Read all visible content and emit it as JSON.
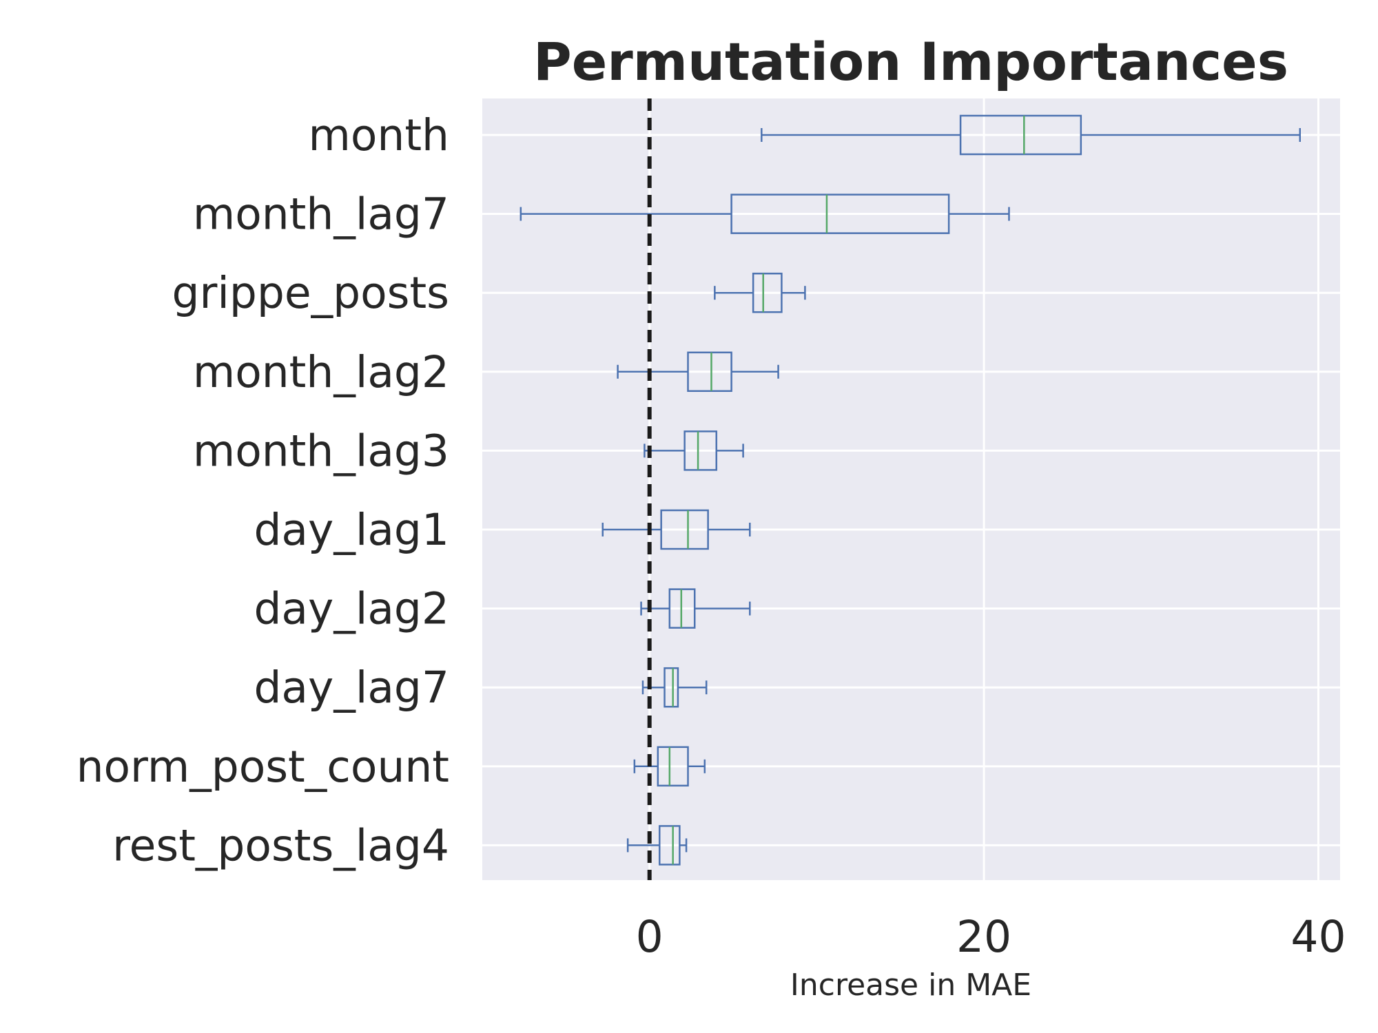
{
  "chart_data": {
    "type": "box",
    "orientation": "horizontal",
    "title": "Permutation Importances",
    "xlabel": "Increase in MAE",
    "ylabel": "",
    "xlim": [
      -10,
      41.3
    ],
    "xticks": [
      0,
      20,
      40
    ],
    "grid": true,
    "reference_line": {
      "x": 0,
      "style": "dashed",
      "color": "#1a1a1a"
    },
    "colors": {
      "background": "#eaeaf2",
      "grid": "#ffffff",
      "box": "#4c72b0",
      "median": "#55a868",
      "text": "#262626"
    },
    "categories": [
      "month",
      "month_lag7",
      "grippe_posts",
      "month_lag2",
      "month_lag3",
      "day_lag1",
      "day_lag2",
      "day_lag7",
      "norm_post_count",
      "rest_posts_lag4"
    ],
    "boxes": [
      {
        "label": "month",
        "whislo": 6.7,
        "q1": 18.6,
        "med": 22.4,
        "q3": 25.8,
        "whishi": 38.9
      },
      {
        "label": "month_lag7",
        "whislo": -7.7,
        "q1": 4.9,
        "med": 10.6,
        "q3": 17.9,
        "whishi": 21.5
      },
      {
        "label": "grippe_posts",
        "whislo": 3.9,
        "q1": 6.2,
        "med": 6.8,
        "q3": 7.9,
        "whishi": 9.3
      },
      {
        "label": "month_lag2",
        "whislo": -1.9,
        "q1": 2.3,
        "med": 3.7,
        "q3": 4.9,
        "whishi": 7.7
      },
      {
        "label": "month_lag3",
        "whislo": -0.3,
        "q1": 2.1,
        "med": 2.9,
        "q3": 4.0,
        "whishi": 5.6
      },
      {
        "label": "day_lag1",
        "whislo": -2.8,
        "q1": 0.7,
        "med": 2.3,
        "q3": 3.5,
        "whishi": 6.0
      },
      {
        "label": "day_lag2",
        "whislo": -0.5,
        "q1": 1.2,
        "med": 1.9,
        "q3": 2.7,
        "whishi": 6.0
      },
      {
        "label": "day_lag7",
        "whislo": -0.4,
        "q1": 0.9,
        "med": 1.4,
        "q3": 1.7,
        "whishi": 3.4
      },
      {
        "label": "norm_post_count",
        "whislo": -0.9,
        "q1": 0.5,
        "med": 1.2,
        "q3": 2.3,
        "whishi": 3.3
      },
      {
        "label": "rest_posts_lag4",
        "whislo": -1.3,
        "q1": 0.6,
        "med": 1.4,
        "q3": 1.8,
        "whishi": 2.2
      }
    ]
  }
}
